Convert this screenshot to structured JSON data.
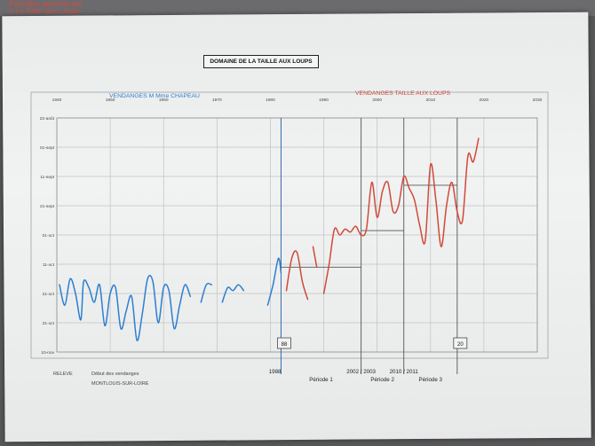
{
  "header_label": {
    "line1": "Parcelles appartenant",
    "line2": "à La Taille aux Loups"
  },
  "document_title": "DOMAINE DE LA TAILLE AUX LOUPS",
  "colors": {
    "left_series": "#2b7fd0",
    "right_series": "#d04a3a",
    "grid": "#bfc2c4"
  },
  "chart_data": {
    "type": "line",
    "title": "DOMAINE DE LA TAILLE AUX LOUPS",
    "xlabel": "",
    "ylabel": "",
    "x_ticks": [
      "1940",
      "1950",
      "1960",
      "1970",
      "1980",
      "1990",
      "2000",
      "2010",
      "2020",
      "2030"
    ],
    "y_ticks": [
      "22-août",
      "01-sept",
      "11-sept",
      "21-sept",
      "01-oct",
      "11-oct",
      "21-oct",
      "31-oct",
      "10-nov"
    ],
    "x_range": [
      1940,
      2030
    ],
    "y_range_days_from_aug22": [
      0,
      80
    ],
    "grid": true,
    "series": [
      {
        "name": "VENDANGES M Mme CHAPEAU",
        "segments": [
          [
            [
              1940.5,
              57
            ],
            [
              1941.5,
              64
            ],
            [
              1942.5,
              55
            ],
            [
              1943.5,
              60
            ],
            [
              1944.5,
              69
            ],
            [
              1945,
              56
            ],
            [
              1946,
              58
            ],
            [
              1947,
              63
            ],
            [
              1948,
              57
            ],
            [
              1949,
              71
            ],
            [
              1950,
              60
            ],
            [
              1951,
              58
            ],
            [
              1952,
              72
            ],
            [
              1953,
              66
            ],
            [
              1954,
              61
            ],
            [
              1955,
              76
            ],
            [
              1956,
              67
            ],
            [
              1957,
              55
            ],
            [
              1958,
              56
            ],
            [
              1959,
              70
            ],
            [
              1960,
              58
            ],
            [
              1961,
              59
            ],
            [
              1962,
              72
            ],
            [
              1963,
              64
            ],
            [
              1964,
              57
            ],
            [
              1965,
              61
            ]
          ],
          [
            [
              1967,
              63
            ],
            [
              1968,
              57
            ],
            [
              1969,
              57
            ]
          ],
          [
            [
              1971,
              63
            ],
            [
              1972,
              58
            ],
            [
              1973,
              59
            ],
            [
              1974,
              57
            ],
            [
              1975,
              59
            ]
          ],
          [
            [
              1979.5,
              64
            ],
            [
              1980.5,
              57
            ],
            [
              1981.5,
              48
            ],
            [
              1982,
              53
            ]
          ]
        ]
      },
      {
        "name": "VENDANGES TAILLE AUX LOUPS",
        "segments": [
          [
            [
              1983,
              59
            ],
            [
              1984,
              48
            ],
            [
              1985,
              46
            ],
            [
              1986,
              56
            ],
            [
              1987,
              62
            ]
          ],
          [
            [
              1988,
              44
            ],
            [
              1988.7,
              51
            ]
          ],
          [
            [
              1990,
              60
            ],
            [
              1991,
              50
            ],
            [
              1992,
              38
            ],
            [
              1993,
              40
            ],
            [
              1994,
              38
            ],
            [
              1995,
              39
            ],
            [
              1996,
              37
            ],
            [
              1997,
              40
            ],
            [
              1998,
              38
            ],
            [
              1999,
              22
            ],
            [
              2000,
              34
            ],
            [
              2001,
              25
            ],
            [
              2002,
              22
            ],
            [
              2003,
              32
            ],
            [
              2004,
              30
            ],
            [
              2005,
              20
            ],
            [
              2006,
              24
            ],
            [
              2007,
              28
            ],
            [
              2008,
              37
            ],
            [
              2009,
              42
            ],
            [
              2010,
              16
            ],
            [
              2011,
              28
            ],
            [
              2012,
              44
            ],
            [
              2013,
              30
            ],
            [
              2014,
              22
            ],
            [
              2015,
              32
            ],
            [
              2016,
              35
            ],
            [
              2017,
              13
            ],
            [
              2018,
              15
            ],
            [
              2019,
              7
            ]
          ]
        ]
      }
    ],
    "period_averages": [
      {
        "label": "Période 1",
        "x": [
          1982,
          1997
        ],
        "y": 51
      },
      {
        "label": "Période 2",
        "x": [
          1997,
          2005
        ],
        "y": 38.5
      },
      {
        "label": "Période 3",
        "x": [
          2005,
          2015
        ],
        "y": 23
      }
    ],
    "vertical_markers": [
      {
        "x": 1982,
        "label": "1988",
        "box_label": "88"
      },
      {
        "x": 1997,
        "label": "2002 / 2003"
      },
      {
        "x": 2005,
        "label": "2010 / 2011"
      },
      {
        "x": 2015,
        "box_label": "20"
      }
    ],
    "left_header": "VENDANGES M Mme CHAPEAU",
    "right_header": "VENDANGES TAILLE AUX LOUPS",
    "footer": {
      "releve": "RELEVE",
      "note_line1": "Début des vendanges",
      "note_line2": "MONTLOUIS-SUR-LOIRE"
    }
  }
}
